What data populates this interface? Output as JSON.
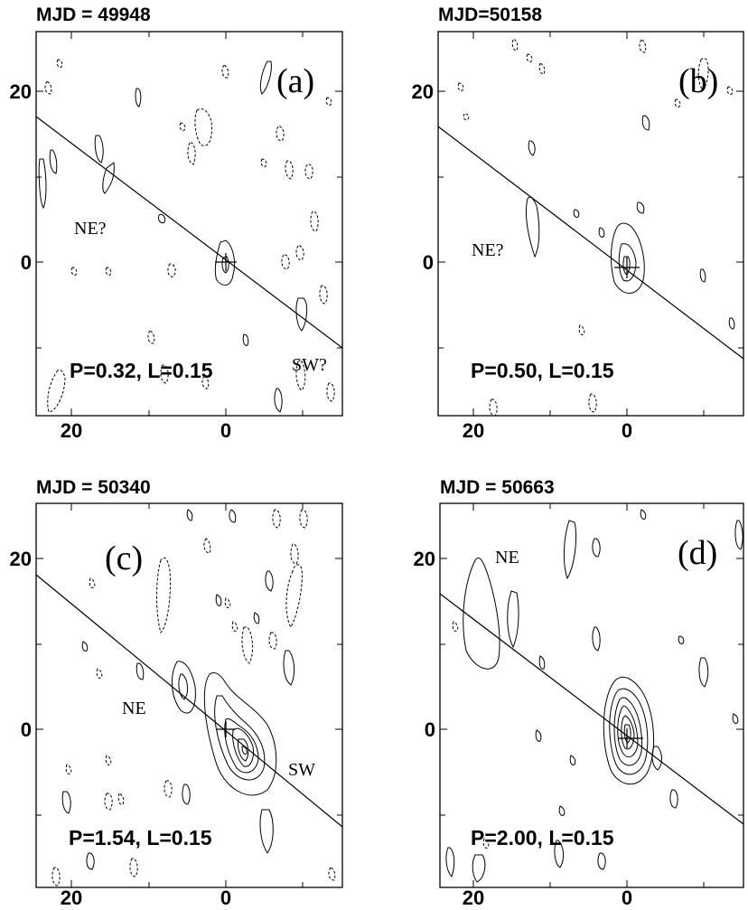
{
  "panels": [
    {
      "id": "a",
      "epoch": "MJD = 49948",
      "label": "(a)",
      "stats": "P=0.32, L=0.15",
      "annotations": [
        "NE?",
        "SW?"
      ],
      "x_ticks": [
        "20",
        "0"
      ],
      "y_ticks": [
        "20",
        "0"
      ]
    },
    {
      "id": "b",
      "epoch": "MJD=50158",
      "label": "(b)",
      "stats": "P=0.50, L=0.15",
      "annotations": [
        "NE?"
      ],
      "x_ticks": [
        "20",
        "0"
      ],
      "y_ticks": [
        "20",
        "0"
      ]
    },
    {
      "id": "c",
      "epoch": "MJD = 50340",
      "label": "(c)",
      "stats": "P=1.54, L=0.15",
      "annotations": [
        "NE",
        "SW"
      ],
      "x_ticks": [
        "20",
        "0"
      ],
      "y_ticks": [
        "20",
        "0"
      ]
    },
    {
      "id": "d",
      "epoch": "MJD = 50663",
      "label": "(d)",
      "stats": "P=2.00, L=0.15",
      "annotations": [
        "NE"
      ],
      "x_ticks": [
        "20",
        "0"
      ],
      "y_ticks": [
        "20",
        "0"
      ]
    }
  ]
}
